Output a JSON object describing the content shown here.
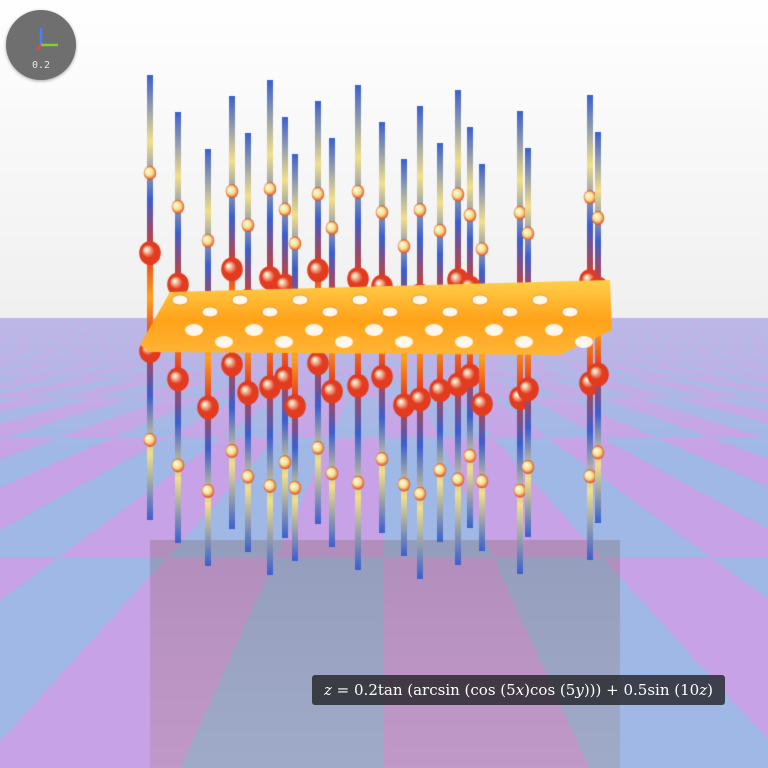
{
  "axis_widget": {
    "scale_label": "0.2"
  },
  "equation": {
    "lhs": "z",
    "rhs_prefix": " = 0.2tan (arcsin (cos (5",
    "x": "x",
    "mid1": ")cos (5",
    "y": "y",
    "mid2": "))) + 0.5sin (10",
    "z": "z",
    "rhs_suffix": ")"
  },
  "colors": {
    "sky": "#ffffff",
    "floor_tile_a": "#9fb8e6",
    "floor_tile_b": "#c8a2e6",
    "surface_core": "#ffa31a",
    "surface_hot": "#e23b1f",
    "surface_stem": "#3a5fcf",
    "surface_bulb": "#f2e08a"
  },
  "icons": [
    "axis-gizmo-icon"
  ]
}
